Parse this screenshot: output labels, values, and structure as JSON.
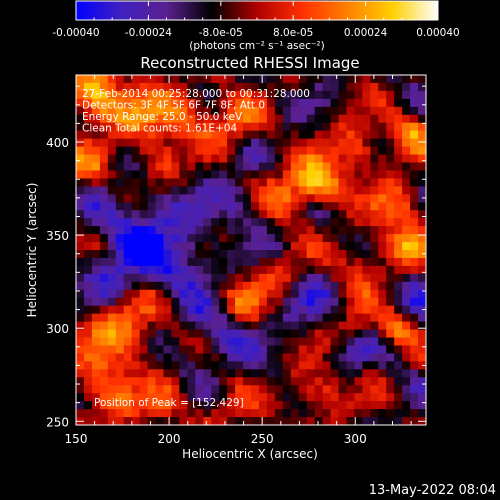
{
  "chart_data": {
    "type": "heatmap",
    "title": "Reconstructed RHESSI Image",
    "xlabel": "Heliocentric X (arcsec)",
    "ylabel": "Heliocentric Y (arcsec)",
    "xlim": [
      150,
      338
    ],
    "ylim": [
      248,
      436
    ],
    "xticks": [
      150,
      200,
      250,
      300
    ],
    "yticks": [
      250,
      300,
      350,
      400
    ],
    "colorbar": {
      "min": -0.0004,
      "max": 0.0004,
      "ticks": [
        "-0.00040",
        "-0.00024",
        "-8.0e-05",
        "8.0e-05",
        "0.00024",
        "0.00040"
      ],
      "tick_values": [
        -0.0004,
        -0.00024,
        -8e-05,
        8e-05,
        0.00024,
        0.0004
      ],
      "label": "(photons cm⁻² s⁻¹ asec⁻²)",
      "colormap": [
        "#0000ff",
        "#4020c0",
        "#5a2090",
        "#000000",
        "#b00000",
        "#ff3000",
        "#ff8000",
        "#ffd000",
        "#ffffff"
      ]
    },
    "annotations": [
      "27-Feb-2014 00:25:28.000 to 00:31:28.000",
      "Detectors: 3F 4F 5F 6F 7F 8F, Att 0",
      "Energy Range: 25.0 - 50.0 keV",
      "Clean    Total counts: 1.61E+04"
    ],
    "peak_label": "Position of Peak = [152,429]",
    "peak_position": [
      152,
      429
    ]
  },
  "footer_timestamp": "13-May-2022 08:04"
}
